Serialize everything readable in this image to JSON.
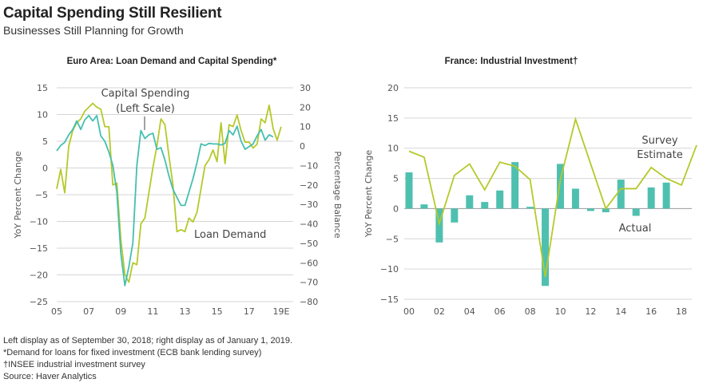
{
  "header": {
    "title": "Capital Spending Still Resilient",
    "subtitle": "Businesses Still Planning for Growth"
  },
  "colors": {
    "capital_spending": "#45bfb0",
    "loan_demand": "#b5c92a",
    "actual_bar": "#4fc0b0",
    "survey_line": "#b5c92a",
    "grid": "#d6d6d6",
    "zero_line": "#999999"
  },
  "notes": [
    "Left display as of September 30, 2018; right display as of January 1, 2019.",
    "*Demand for loans for fixed investment (ECB bank lending survey)",
    "†INSEE industrial investment survey",
    "Source: Haver Analytics"
  ],
  "chart_data": [
    {
      "type": "line",
      "title": "Euro Area: Loan Demand and Capital Spending*",
      "xlabel": "",
      "ylabel": "YoY Percent Change",
      "ylabel_right": "Percentage Balance",
      "xlim": [
        2005,
        2019.75
      ],
      "ylim": [
        -25,
        15
      ],
      "ylim_right": [
        -80,
        30
      ],
      "yticks": [
        15,
        10,
        5,
        0,
        -5,
        -10,
        -15,
        -20,
        -25
      ],
      "yticks_right": [
        30,
        20,
        10,
        0,
        -10,
        -20,
        -30,
        -40,
        -50,
        -60,
        -70,
        -80
      ],
      "xtick_labels": [
        "05",
        "07",
        "09",
        "11",
        "13",
        "15",
        "17",
        "19E"
      ],
      "xtick_values": [
        2005,
        2007,
        2009,
        2011,
        2013,
        2015,
        2017,
        2019
      ],
      "grid": true,
      "annotations": {
        "capital_spending": [
          "Capital Spending",
          "(Left Scale)"
        ],
        "loan_demand": "Loan Demand"
      },
      "series": [
        {
          "name": "Capital Spending",
          "axis": "left",
          "x": [
            2005.0,
            2005.25,
            2005.5,
            2005.75,
            2006.0,
            2006.25,
            2006.5,
            2006.75,
            2007.0,
            2007.25,
            2007.5,
            2007.75,
            2008.0,
            2008.25,
            2008.5,
            2008.75,
            2009.0,
            2009.25,
            2009.5,
            2009.75,
            2010.0,
            2010.25,
            2010.5,
            2010.75,
            2011.0,
            2011.25,
            2011.5,
            2011.75,
            2012.0,
            2012.25,
            2012.5,
            2012.75,
            2013.0,
            2013.25,
            2013.5,
            2013.75,
            2014.0,
            2014.25,
            2014.5,
            2014.75,
            2015.0,
            2015.25,
            2015.5,
            2015.75,
            2016.0,
            2016.25,
            2016.5,
            2016.75,
            2017.0,
            2017.25,
            2017.5,
            2017.75,
            2018.0,
            2018.25,
            2018.5
          ],
          "values": [
            3.2,
            4.2,
            4.8,
            6.2,
            7.2,
            8.8,
            7.2,
            9.0,
            9.8,
            8.8,
            9.8,
            6.0,
            5.0,
            3.0,
            0.5,
            -4.5,
            -16.0,
            -22.0,
            -18.5,
            -14.0,
            0.5,
            7.0,
            5.5,
            6.2,
            6.5,
            3.5,
            3.8,
            1.5,
            -1.5,
            -4.0,
            -5.5,
            -7.0,
            -7.0,
            -4.5,
            -2.0,
            1.0,
            4.5,
            4.2,
            4.6,
            4.5,
            4.5,
            4.3,
            4.6,
            7.0,
            6.2,
            7.8,
            5.0,
            3.5,
            4.0,
            4.5,
            6.0,
            7.2,
            5.2,
            6.2,
            5.8
          ]
        },
        {
          "name": "Loan Demand",
          "axis": "right",
          "x": [
            2005.0,
            2005.25,
            2005.5,
            2005.75,
            2006.0,
            2006.25,
            2006.5,
            2006.75,
            2007.0,
            2007.25,
            2007.5,
            2007.75,
            2008.0,
            2008.25,
            2008.5,
            2008.75,
            2009.0,
            2009.25,
            2009.5,
            2009.75,
            2010.0,
            2010.25,
            2010.5,
            2010.75,
            2011.0,
            2011.25,
            2011.5,
            2011.75,
            2012.0,
            2012.25,
            2012.5,
            2012.75,
            2013.0,
            2013.25,
            2013.5,
            2013.75,
            2014.0,
            2014.25,
            2014.5,
            2014.75,
            2015.0,
            2015.25,
            2015.5,
            2015.75,
            2016.0,
            2016.25,
            2016.5,
            2016.75,
            2017.0,
            2017.25,
            2017.5,
            2017.75,
            2018.0,
            2018.25,
            2018.5,
            2018.75,
            2019.0
          ],
          "values": [
            -22,
            -12,
            -24,
            0,
            8,
            12,
            14,
            18,
            20,
            22,
            20,
            19,
            10,
            10,
            -20,
            -19,
            -48,
            -66,
            -70,
            -60,
            -61,
            -40,
            -37,
            -24,
            -11,
            0,
            14,
            11,
            -5,
            -20,
            -44,
            -43,
            -44,
            -37,
            -39,
            -34,
            -22,
            -10,
            -7,
            -2,
            -8,
            12,
            -9,
            11,
            10,
            16,
            8,
            2,
            2,
            -1,
            1,
            14,
            12,
            21,
            9,
            3,
            10
          ]
        }
      ]
    },
    {
      "type": "bar",
      "title": "France: Industrial Investment†",
      "xlabel": "",
      "ylabel": "YoY Percent Change",
      "xlim": [
        2000,
        2019
      ],
      "ylim": [
        -15,
        20
      ],
      "yticks": [
        20,
        15,
        10,
        5,
        0,
        -5,
        -10,
        -15
      ],
      "xtick_labels": [
        "00",
        "02",
        "04",
        "06",
        "08",
        "10",
        "12",
        "14",
        "16",
        "18"
      ],
      "grid": true,
      "annotations": {
        "survey": [
          "Survey",
          "Estimate"
        ],
        "actual": "Actual"
      },
      "categories": [
        "2000",
        "2001",
        "2002",
        "2003",
        "2004",
        "2005",
        "2006",
        "2007",
        "2008",
        "2009",
        "2010",
        "2011",
        "2012",
        "2013",
        "2014",
        "2015",
        "2016",
        "2017",
        "2018",
        "2019"
      ],
      "series": [
        {
          "name": "Actual",
          "type": "bar",
          "x": [
            2000,
            2001,
            2002,
            2003,
            2004,
            2005,
            2006,
            2007,
            2008,
            2009,
            2010,
            2011,
            2012,
            2013,
            2014,
            2015,
            2016,
            2017
          ],
          "values": [
            6.0,
            0.7,
            -5.6,
            -2.3,
            2.2,
            1.1,
            3.0,
            7.7,
            0.3,
            -12.8,
            7.4,
            3.3,
            -0.4,
            -0.6,
            4.8,
            -1.2,
            3.5,
            4.3
          ]
        },
        {
          "name": "Survey Estimate",
          "type": "line",
          "x": [
            2000,
            2001,
            2002,
            2003,
            2004,
            2005,
            2006,
            2007,
            2008,
            2009,
            2010,
            2011,
            2012,
            2013,
            2014,
            2015,
            2016,
            2017,
            2018,
            2019
          ],
          "values": [
            9.5,
            8.5,
            -2.5,
            5.5,
            7.4,
            3.1,
            7.7,
            7.0,
            4.8,
            -11.3,
            4.8,
            14.8,
            7.4,
            0.0,
            3.3,
            3.3,
            6.8,
            5.0,
            3.9,
            10.5
          ]
        }
      ]
    }
  ]
}
